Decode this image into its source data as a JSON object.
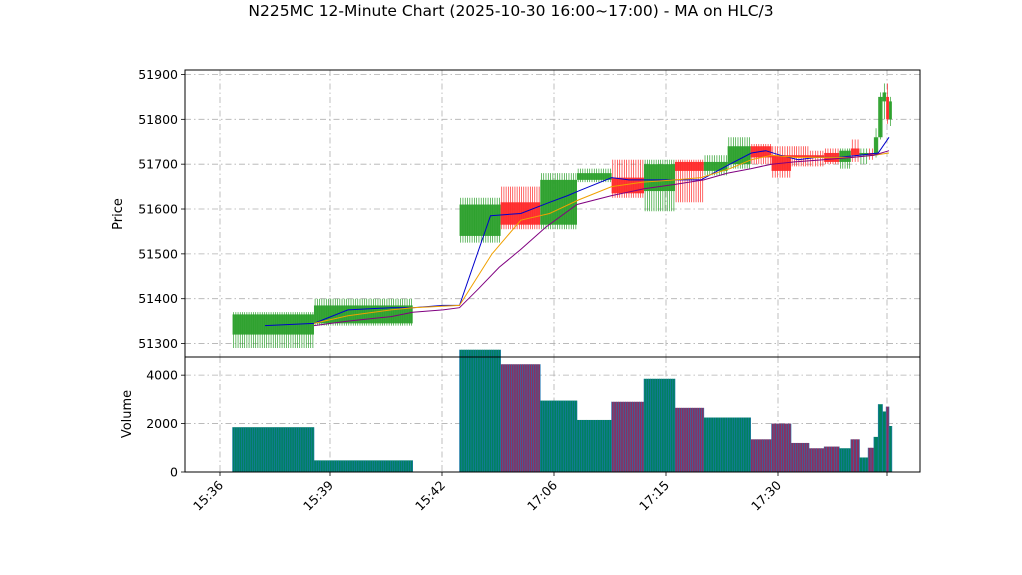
{
  "chart_data": {
    "type": "candlestick_with_volume",
    "title": "N225MC 12-Minute Chart (2025-10-30 16:00~17:00) - MA on HLC/3",
    "price_panel": {
      "ylabel": "Price",
      "yticks": [
        51300,
        51400,
        51500,
        51600,
        51700,
        51800,
        51900
      ],
      "ylim": [
        51270,
        51910
      ],
      "grid": true
    },
    "volume_panel": {
      "ylabel": "Volume",
      "yticks": [
        0,
        2000,
        4000
      ],
      "ylim": [
        0,
        4750
      ],
      "grid": true
    },
    "xticks": [
      "15:36",
      "15:39",
      "15:42",
      "17:06",
      "17:15",
      "17:30"
    ],
    "colors": {
      "up": "#2ca02c",
      "down": "#ff2a2a",
      "ma_short": "#0000cc",
      "ma_mid": "#f0a000",
      "ma_long": "#800080",
      "volume_up": "#008060",
      "volume_down": "#8a3060",
      "volume_edge": "#1f77b4",
      "grid": "#b0b0b0"
    },
    "segments": [
      {
        "t0": 0.0,
        "t1": 11.3,
        "open": 51320,
        "high": 51370,
        "low": 51290,
        "close": 51365,
        "volume": 1850,
        "dir": "up"
      },
      {
        "t0": 11.3,
        "t1": 25.0,
        "open": 51345,
        "high": 51400,
        "low": 51340,
        "close": 51385,
        "volume": 480,
        "dir": "up"
      },
      {
        "t0": 31.5,
        "t1": 37.2,
        "open": 51540,
        "high": 51625,
        "low": 51525,
        "close": 51610,
        "volume": 5050,
        "dir": "up"
      },
      {
        "t0": 37.2,
        "t1": 42.7,
        "open": 51615,
        "high": 51650,
        "low": 51555,
        "close": 51565,
        "volume": 4450,
        "dir": "down"
      },
      {
        "t0": 42.7,
        "t1": 47.8,
        "open": 51565,
        "high": 51680,
        "low": 51555,
        "close": 51665,
        "volume": 2950,
        "dir": "up"
      },
      {
        "t0": 47.8,
        "t1": 52.6,
        "open": 51665,
        "high": 51690,
        "low": 51660,
        "close": 51680,
        "volume": 2150,
        "dir": "up"
      },
      {
        "t0": 52.6,
        "t1": 57.1,
        "open": 51670,
        "high": 51710,
        "low": 51625,
        "close": 51635,
        "volume": 2900,
        "dir": "down"
      },
      {
        "t0": 57.1,
        "t1": 61.4,
        "open": 51640,
        "high": 51710,
        "low": 51595,
        "close": 51700,
        "volume": 3850,
        "dir": "up"
      },
      {
        "t0": 61.4,
        "t1": 65.4,
        "open": 51705,
        "high": 51710,
        "low": 51615,
        "close": 51685,
        "volume": 2650,
        "dir": "down"
      },
      {
        "t0": 65.4,
        "t1": 68.7,
        "open": 51685,
        "high": 51720,
        "low": 51675,
        "close": 51705,
        "volume": 2250,
        "dir": "up"
      },
      {
        "t0": 68.7,
        "t1": 71.9,
        "open": 51700,
        "high": 51760,
        "low": 51690,
        "close": 51740,
        "volume": 2250,
        "dir": "up"
      },
      {
        "t0": 71.9,
        "t1": 74.8,
        "open": 51740,
        "high": 51745,
        "low": 51700,
        "close": 51715,
        "volume": 1350,
        "dir": "down"
      },
      {
        "t0": 74.8,
        "t1": 77.5,
        "open": 51720,
        "high": 51740,
        "low": 51670,
        "close": 51685,
        "volume": 2000,
        "dir": "down"
      },
      {
        "t0": 77.5,
        "t1": 80.0,
        "open": 51715,
        "high": 51740,
        "low": 51695,
        "close": 51720,
        "volume": 1200,
        "dir": "down"
      },
      {
        "t0": 80.0,
        "t1": 82.1,
        "open": 51720,
        "high": 51730,
        "low": 51695,
        "close": 51715,
        "volume": 980,
        "dir": "down"
      },
      {
        "t0": 82.1,
        "t1": 84.2,
        "open": 51725,
        "high": 51735,
        "low": 51700,
        "close": 51705,
        "volume": 1050,
        "dir": "down"
      },
      {
        "t0": 84.2,
        "t1": 85.8,
        "open": 51705,
        "high": 51735,
        "low": 51690,
        "close": 51730,
        "volume": 980,
        "dir": "up"
      },
      {
        "t0": 85.8,
        "t1": 87.0,
        "open": 51735,
        "high": 51755,
        "low": 51705,
        "close": 51720,
        "volume": 1350,
        "dir": "down"
      },
      {
        "t0": 87.0,
        "t1": 88.2,
        "open": 51720,
        "high": 51735,
        "low": 51700,
        "close": 51725,
        "volume": 600,
        "dir": "up"
      },
      {
        "t0": 88.2,
        "t1": 89.0,
        "open": 51725,
        "high": 51735,
        "low": 51710,
        "close": 51720,
        "volume": 1000,
        "dir": "down"
      },
      {
        "t0": 89.0,
        "t1": 89.6,
        "open": 51720,
        "high": 51780,
        "low": 51715,
        "close": 51760,
        "volume": 1450,
        "dir": "up"
      },
      {
        "t0": 89.6,
        "t1": 90.2,
        "open": 51760,
        "high": 51860,
        "low": 51755,
        "close": 51850,
        "volume": 2800,
        "dir": "up"
      },
      {
        "t0": 90.2,
        "t1": 90.7,
        "open": 51840,
        "high": 51880,
        "low": 51800,
        "close": 51860,
        "volume": 2500,
        "dir": "up"
      },
      {
        "t0": 90.7,
        "t1": 91.1,
        "open": 51850,
        "high": 51880,
        "low": 51790,
        "close": 51800,
        "volume": 2700,
        "dir": "down"
      },
      {
        "t0": 91.1,
        "t1": 91.5,
        "open": 51800,
        "high": 51850,
        "low": 51785,
        "close": 51840,
        "volume": 1900,
        "dir": "up"
      }
    ],
    "ma_series": [
      {
        "key": "ma_short",
        "points": [
          [
            4.5,
            51340
          ],
          [
            11.3,
            51345
          ],
          [
            16.0,
            51375
          ],
          [
            22.0,
            51380
          ],
          [
            25.0,
            51380
          ],
          [
            29.2,
            51385
          ],
          [
            31.5,
            51385
          ],
          [
            35.8,
            51585
          ],
          [
            40.0,
            51590
          ],
          [
            44.0,
            51615
          ],
          [
            46.5,
            51630
          ],
          [
            48.0,
            51640
          ],
          [
            52.6,
            51670
          ],
          [
            55.0,
            51665
          ],
          [
            60.0,
            51665
          ],
          [
            65.0,
            51665
          ],
          [
            69.0,
            51700
          ],
          [
            72.0,
            51725
          ],
          [
            74.0,
            51730
          ],
          [
            76.0,
            51720
          ],
          [
            78.5,
            51710
          ],
          [
            81.0,
            51715
          ],
          [
            84.0,
            51715
          ],
          [
            87.0,
            51720
          ],
          [
            89.6,
            51725
          ],
          [
            91.1,
            51760
          ]
        ]
      },
      {
        "key": "ma_mid",
        "points": [
          [
            11.3,
            51345
          ],
          [
            16.0,
            51362
          ],
          [
            22.0,
            51375
          ],
          [
            25.0,
            51380
          ],
          [
            31.5,
            51385
          ],
          [
            36.0,
            51500
          ],
          [
            40.0,
            51575
          ],
          [
            44.0,
            51590
          ],
          [
            48.0,
            51620
          ],
          [
            52.6,
            51650
          ],
          [
            57.0,
            51660
          ],
          [
            61.4,
            51665
          ],
          [
            65.0,
            51670
          ],
          [
            69.0,
            51690
          ],
          [
            72.0,
            51710
          ],
          [
            74.8,
            51720
          ],
          [
            78.0,
            51715
          ],
          [
            82.0,
            51715
          ],
          [
            86.0,
            51715
          ],
          [
            89.0,
            51720
          ],
          [
            91.1,
            51725
          ]
        ]
      },
      {
        "key": "ma_long",
        "points": [
          [
            11.3,
            51340
          ],
          [
            16.0,
            51350
          ],
          [
            22.0,
            51360
          ],
          [
            25.0,
            51370
          ],
          [
            29.2,
            51375
          ],
          [
            31.5,
            51380
          ],
          [
            34.0,
            51420
          ],
          [
            37.0,
            51470
          ],
          [
            40.0,
            51510
          ],
          [
            43.5,
            51560
          ],
          [
            47.8,
            51610
          ],
          [
            52.6,
            51630
          ],
          [
            57.1,
            51645
          ],
          [
            61.4,
            51655
          ],
          [
            65.4,
            51665
          ],
          [
            68.7,
            51680
          ],
          [
            71.9,
            51690
          ],
          [
            74.8,
            51700
          ],
          [
            78.0,
            51705
          ],
          [
            82.0,
            51710
          ],
          [
            86.0,
            51715
          ],
          [
            89.0,
            51720
          ],
          [
            91.1,
            51730
          ]
        ]
      }
    ]
  }
}
